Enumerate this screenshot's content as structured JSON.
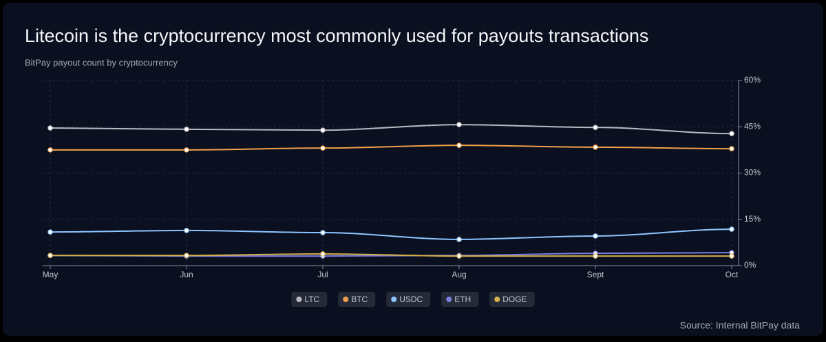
{
  "chart_data": {
    "type": "line",
    "title": "Litecoin is the cryptocurrency most commonly used for payouts transactions",
    "subtitle": "BitPay payout count by cryptocurrency",
    "source": "Source: Internal BitPay data",
    "categories": [
      "May",
      "Jun",
      "Jul",
      "Aug",
      "Sept",
      "Oct"
    ],
    "ylim": [
      0,
      60
    ],
    "yticks": [
      {
        "value": 0,
        "label": "0%"
      },
      {
        "value": 15,
        "label": "15%"
      },
      {
        "value": 30,
        "label": "30%"
      },
      {
        "value": 45,
        "label": "45%"
      },
      {
        "value": 60,
        "label": "60%"
      }
    ],
    "grid": true,
    "legend": "bottom",
    "series": [
      {
        "name": "LTC",
        "color": "#b9bac2",
        "values": [
          44.6,
          44.2,
          43.9,
          45.7,
          44.8,
          42.8
        ]
      },
      {
        "name": "BTC",
        "color": "#f0a04b",
        "values": [
          37.5,
          37.5,
          38.1,
          39.0,
          38.4,
          37.9
        ]
      },
      {
        "name": "USDC",
        "color": "#8ec5ff",
        "values": [
          10.9,
          11.4,
          10.7,
          8.5,
          9.6,
          11.8
        ]
      },
      {
        "name": "ETH",
        "color": "#7b7fe0",
        "values": [
          3.3,
          3.1,
          3.1,
          3.3,
          4.0,
          4.2
        ]
      },
      {
        "name": "DOGE",
        "color": "#d6b04a",
        "values": [
          3.3,
          3.3,
          3.8,
          3.1,
          3.1,
          3.1
        ]
      }
    ]
  }
}
